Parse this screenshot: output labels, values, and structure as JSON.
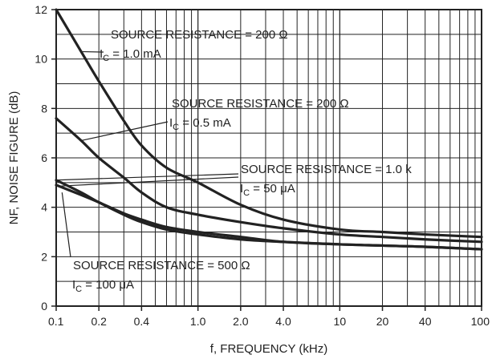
{
  "chart_data": {
    "type": "line",
    "xscale": "log",
    "xlim": [
      0.1,
      100
    ],
    "ylim": [
      0,
      12
    ],
    "xlabel": "f, FREQUENCY (kHz)",
    "ylabel": "NF, NOISE FIGURE (dB)",
    "grid": true,
    "colors": {
      "line": "#222222",
      "grid": "#222222",
      "background": "#ffffff"
    },
    "xticks": [
      {
        "value": 0.1,
        "label": "0.1"
      },
      {
        "value": 0.2,
        "label": "0.2"
      },
      {
        "value": 0.4,
        "label": "0.4"
      },
      {
        "value": 1,
        "label": "1.0"
      },
      {
        "value": 2,
        "label": "2.0"
      },
      {
        "value": 4,
        "label": "4.0"
      },
      {
        "value": 10,
        "label": "10"
      },
      {
        "value": 20,
        "label": "20"
      },
      {
        "value": 40,
        "label": "40"
      },
      {
        "value": 100,
        "label": "100"
      }
    ],
    "yticks": [
      {
        "value": 0,
        "label": "0"
      },
      {
        "value": 2,
        "label": "2"
      },
      {
        "value": 4,
        "label": "4"
      },
      {
        "value": 6,
        "label": "6"
      },
      {
        "value": 8,
        "label": "8"
      },
      {
        "value": 10,
        "label": "10"
      },
      {
        "value": 12,
        "label": "12"
      }
    ],
    "series": [
      {
        "x": [
          0.1,
          0.15,
          0.2,
          0.3,
          0.4,
          0.6,
          1,
          2,
          4,
          10,
          20,
          40,
          100
        ],
        "y": [
          12.0,
          10.3,
          9.1,
          7.5,
          6.5,
          5.6,
          5.0,
          4.1,
          3.5,
          3.1,
          3.0,
          2.9,
          2.8
        ]
      },
      {
        "x": [
          0.1,
          0.15,
          0.2,
          0.3,
          0.4,
          0.6,
          1,
          2,
          4,
          10,
          20,
          40,
          100
        ],
        "y": [
          7.6,
          6.7,
          6.0,
          5.2,
          4.6,
          4.0,
          3.7,
          3.4,
          3.15,
          2.9,
          2.8,
          2.7,
          2.6
        ]
      },
      {
        "x": [
          0.1,
          0.15,
          0.2,
          0.3,
          0.4,
          0.6,
          1,
          2,
          4,
          10,
          20,
          40,
          100
        ],
        "y": [
          5.1,
          4.6,
          4.2,
          3.7,
          3.4,
          3.1,
          2.9,
          2.7,
          2.6,
          2.5,
          2.45,
          2.4,
          2.3
        ]
      },
      {
        "x": [
          0.1,
          0.15,
          0.2,
          0.3,
          0.4,
          0.6,
          1,
          2,
          4,
          10,
          20,
          40,
          100
        ],
        "y": [
          4.9,
          4.5,
          4.2,
          3.75,
          3.5,
          3.2,
          3.0,
          2.8,
          2.6,
          2.5,
          2.45,
          2.4,
          2.3
        ]
      }
    ],
    "annotations": [
      {
        "text": "SOURCE RESISTANCE = 200 Ω",
        "sub_prefix": "I",
        "sub": "C",
        "sub_text": " = 1.0 mA"
      },
      {
        "text": "SOURCE RESISTANCE = 200 Ω",
        "sub_prefix": "I",
        "sub": "C",
        "sub_text": " = 0.5 mA"
      },
      {
        "text": "SOURCE RESISTANCE = 1.0 k",
        "sub_prefix": "I",
        "sub": "C",
        "sub_text": " = 50 μA"
      },
      {
        "text": "SOURCE RESISTANCE = 500 Ω",
        "sub_prefix": "I",
        "sub": "C",
        "sub_text": " = 100 μA"
      }
    ]
  }
}
